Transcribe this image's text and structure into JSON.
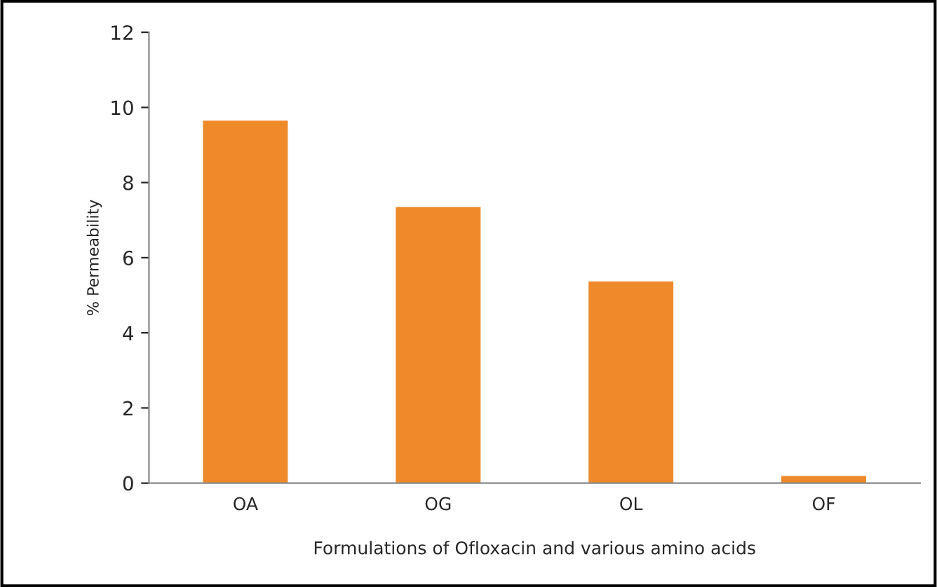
{
  "chart_data": {
    "type": "bar",
    "categories": [
      "OA",
      "OG",
      "OL",
      "OF"
    ],
    "values": [
      9.65,
      7.35,
      5.37,
      0.19
    ],
    "color": "#ee8a2a",
    "xlabel": "Formulations of Ofloxacin and various amino acids",
    "ylabel": "% Permeability",
    "ylim": [
      0,
      12
    ],
    "yticks": [
      0,
      2,
      4,
      6,
      8,
      10,
      12
    ],
    "grid": false
  }
}
